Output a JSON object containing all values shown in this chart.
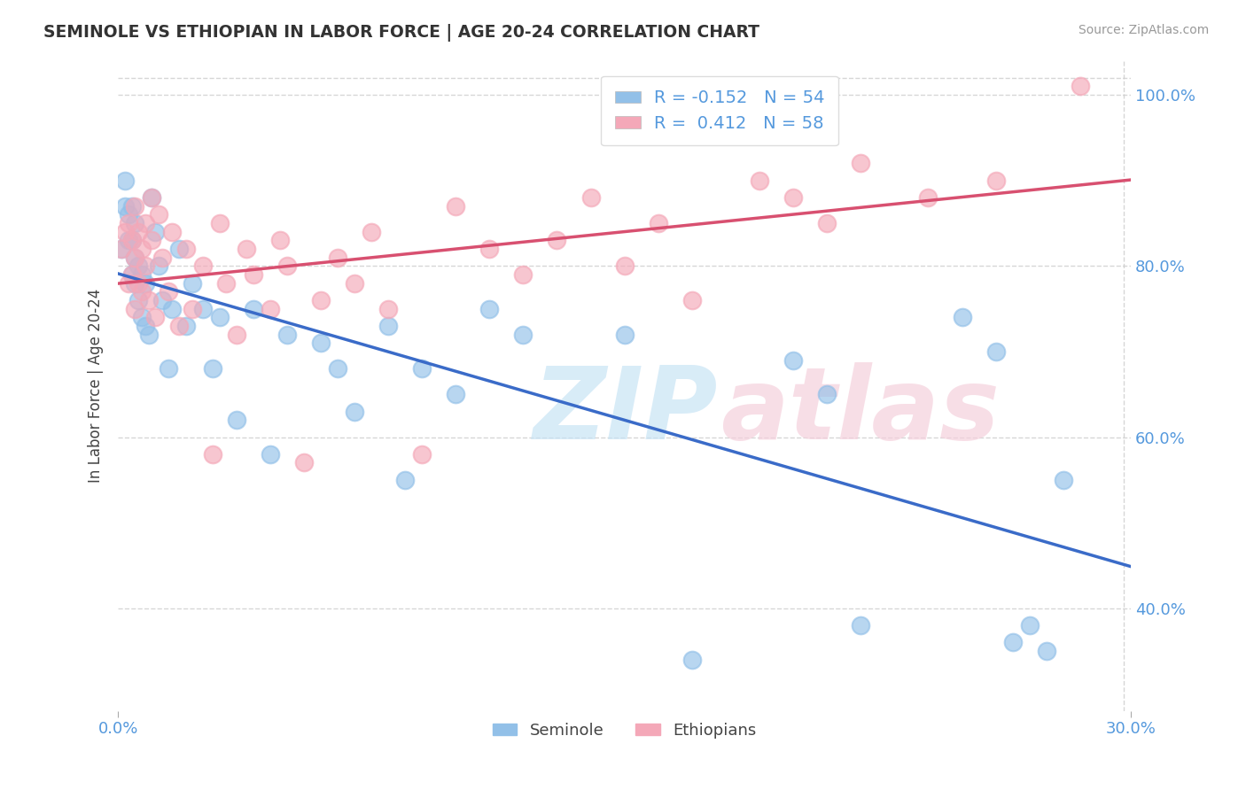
{
  "title": "SEMINOLE VS ETHIOPIAN IN LABOR FORCE | AGE 20-24 CORRELATION CHART",
  "source": "Source: ZipAtlas.com",
  "ylabel": "In Labor Force | Age 20-24",
  "legend_labels": [
    "Seminole",
    "Ethiopians"
  ],
  "r_seminole": -0.152,
  "n_seminole": 54,
  "r_ethiopian": 0.412,
  "n_ethiopian": 58,
  "xlim": [
    0.0,
    0.3
  ],
  "ylim": [
    0.28,
    1.04
  ],
  "color_seminole": "#92C0E8",
  "color_ethiopian": "#F4A8B8",
  "line_color_seminole": "#3A6BC8",
  "line_color_ethiopian": "#D85070",
  "seminole_x": [
    0.001,
    0.002,
    0.002,
    0.003,
    0.003,
    0.004,
    0.004,
    0.004,
    0.005,
    0.005,
    0.005,
    0.006,
    0.006,
    0.007,
    0.007,
    0.008,
    0.008,
    0.009,
    0.01,
    0.011,
    0.012,
    0.013,
    0.015,
    0.016,
    0.018,
    0.02,
    0.022,
    0.025,
    0.028,
    0.03,
    0.035,
    0.04,
    0.045,
    0.05,
    0.06,
    0.065,
    0.07,
    0.08,
    0.085,
    0.09,
    0.1,
    0.11,
    0.12,
    0.15,
    0.17,
    0.2,
    0.21,
    0.22,
    0.25,
    0.26,
    0.265,
    0.27,
    0.275,
    0.28
  ],
  "seminole_y": [
    0.82,
    0.9,
    0.87,
    0.83,
    0.86,
    0.79,
    0.83,
    0.87,
    0.78,
    0.81,
    0.85,
    0.76,
    0.8,
    0.74,
    0.79,
    0.73,
    0.78,
    0.72,
    0.88,
    0.84,
    0.8,
    0.76,
    0.68,
    0.75,
    0.82,
    0.73,
    0.78,
    0.75,
    0.68,
    0.74,
    0.62,
    0.75,
    0.58,
    0.72,
    0.71,
    0.68,
    0.63,
    0.73,
    0.55,
    0.68,
    0.65,
    0.75,
    0.72,
    0.72,
    0.34,
    0.69,
    0.65,
    0.38,
    0.74,
    0.7,
    0.36,
    0.38,
    0.35,
    0.55
  ],
  "ethiopian_x": [
    0.001,
    0.002,
    0.003,
    0.003,
    0.004,
    0.004,
    0.005,
    0.005,
    0.005,
    0.006,
    0.006,
    0.007,
    0.007,
    0.008,
    0.008,
    0.009,
    0.01,
    0.01,
    0.011,
    0.012,
    0.013,
    0.015,
    0.016,
    0.018,
    0.02,
    0.022,
    0.025,
    0.028,
    0.03,
    0.032,
    0.035,
    0.038,
    0.04,
    0.045,
    0.048,
    0.05,
    0.055,
    0.06,
    0.065,
    0.07,
    0.075,
    0.08,
    0.09,
    0.1,
    0.11,
    0.12,
    0.13,
    0.14,
    0.15,
    0.16,
    0.17,
    0.19,
    0.2,
    0.21,
    0.22,
    0.24,
    0.26,
    0.285
  ],
  "ethiopian_y": [
    0.82,
    0.84,
    0.85,
    0.78,
    0.83,
    0.79,
    0.87,
    0.81,
    0.75,
    0.84,
    0.78,
    0.82,
    0.77,
    0.85,
    0.8,
    0.76,
    0.88,
    0.83,
    0.74,
    0.86,
    0.81,
    0.77,
    0.84,
    0.73,
    0.82,
    0.75,
    0.8,
    0.58,
    0.85,
    0.78,
    0.72,
    0.82,
    0.79,
    0.75,
    0.83,
    0.8,
    0.57,
    0.76,
    0.81,
    0.78,
    0.84,
    0.75,
    0.58,
    0.87,
    0.82,
    0.79,
    0.83,
    0.88,
    0.8,
    0.85,
    0.76,
    0.9,
    0.88,
    0.85,
    0.92,
    0.88,
    0.9,
    1.01
  ]
}
